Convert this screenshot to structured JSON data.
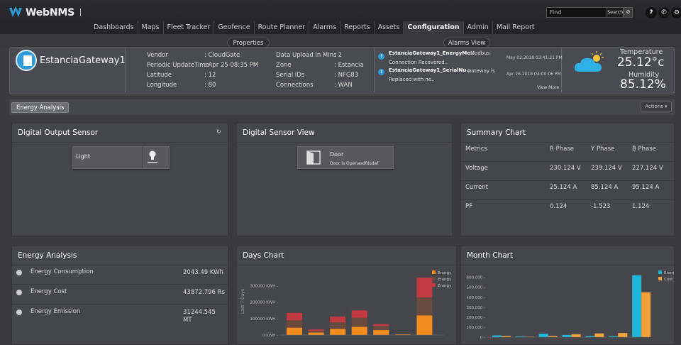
{
  "header": {
    "brand": "WebNMS",
    "search_placeholder": "Find",
    "search_button": "Search",
    "icons": [
      "help-icon",
      "phone-icon",
      "gear-icon"
    ]
  },
  "nav": {
    "items": [
      "Dashboards",
      "Maps",
      "Fleet Tracker",
      "Geofence",
      "Route Planner",
      "Alarms",
      "Reports",
      "Assets",
      "Configuration",
      "Admin",
      "Mail Report"
    ],
    "active": "Configuration"
  },
  "pills": {
    "properties": "Properties",
    "alarms_view": "Alarms View"
  },
  "device": {
    "name": "EstanciaGateway1",
    "props_left": [
      {
        "k": "Vendor",
        "v": ": CloudGate"
      },
      {
        "k": "Periodic UpdateTime",
        "v": ": Apr 25 08:35 PM"
      },
      {
        "k": "Latitude",
        "v": ": 12"
      },
      {
        "k": "Longitude",
        "v": ": 80"
      }
    ],
    "props_right": [
      {
        "k": "Data Upload in Mins",
        "v": ": 2"
      },
      {
        "k": "Zone",
        "v": ": Estancia"
      },
      {
        "k": "Serial IDs",
        "v": ": NFG83"
      },
      {
        "k": "Connections",
        "v": ": WAN"
      }
    ]
  },
  "alarms": {
    "items": [
      {
        "title": "EstanciaGateway1_EnergyMe..",
        "msg1": "Modbus",
        "msg2": "Connection Recovered..",
        "time": "May 02,2018 03:41:21 PM"
      },
      {
        "title": "EstanciaGateway1_SerialNu..",
        "msg1": "Gateway is",
        "msg2": "Replaced with ne..",
        "time": "Apr 26,2018 04:00:06 PM"
      }
    ],
    "view_more": "View More"
  },
  "weather": {
    "temperature_label": "Temperature",
    "temperature_value": "25.12°c",
    "humidity_label": "Humidity",
    "humidity_value": "85.12%"
  },
  "tabs": {
    "active": "Energy Analysis",
    "actions": "Actions ▾"
  },
  "digital_output": {
    "title": "Digital Output Sensor",
    "label": "Light"
  },
  "digital_sensor": {
    "title": "Digital Sensor View",
    "label": "Door",
    "status": "Door is Openasdfdsdaf"
  },
  "summary": {
    "title": "Summary Chart",
    "headers": [
      "Metrics",
      "R Phase",
      "Y Phase",
      "B Phase"
    ],
    "rows": [
      [
        "Voltage",
        "230.124 V",
        "239.124 V",
        "227.124 V"
      ],
      [
        "Current",
        "25.124 A",
        "85.124 A",
        "95.124 A"
      ],
      [
        "PF",
        "0.124",
        "-1.523",
        "1.124"
      ]
    ]
  },
  "energy_analysis": {
    "title": "Energy Analysis",
    "rows": [
      {
        "label": "Energy Consumption",
        "value": "2043.49 KWh",
        "value2": ""
      },
      {
        "label": "Energy Cost",
        "value": "43872.796 Rs",
        "value2": ""
      },
      {
        "label": "Energy Emission",
        "value": "31244.545",
        "value2": "MT"
      }
    ]
  },
  "chart_data": [
    {
      "type": "bar",
      "title": "Days Chart",
      "ylabel": "Last 7 Days",
      "yticks": [
        "0 KWH",
        "100000 KWH",
        "200000 KWH",
        "300000 KWH"
      ],
      "ylim": [
        0,
        380000
      ],
      "stacked": true,
      "legend": [
        "Energy",
        "Energy",
        "Energy"
      ],
      "colors": [
        "#f28c1e",
        "#6b4a3e",
        "#c23a3f"
      ],
      "series": [
        {
          "values": [
            45000,
            15000,
            38000,
            50000,
            30000,
            4000,
            120000
          ]
        },
        {
          "values": [
            45000,
            10000,
            40000,
            55000,
            25000,
            2000,
            110000
          ]
        },
        {
          "values": [
            45000,
            10000,
            35000,
            45000,
            12000,
            0,
            120000
          ]
        }
      ]
    },
    {
      "type": "bar",
      "title": "Month Chart",
      "yticks": [
        "0",
        "100,000",
        "200,000",
        "300,000",
        "400,000",
        "500,000",
        "600,000"
      ],
      "ylim": [
        0,
        640000
      ],
      "legend": [
        "Energy",
        "Cost"
      ],
      "colors": [
        "#1fb5d6",
        "#f2a03a"
      ],
      "series": [
        {
          "name": "Energy",
          "values": [
            18000,
            8000,
            35000,
            22000,
            12000,
            10000,
            620000
          ]
        },
        {
          "name": "Cost",
          "values": [
            12000,
            5000,
            12000,
            30000,
            38000,
            42000,
            450000
          ]
        }
      ]
    }
  ]
}
